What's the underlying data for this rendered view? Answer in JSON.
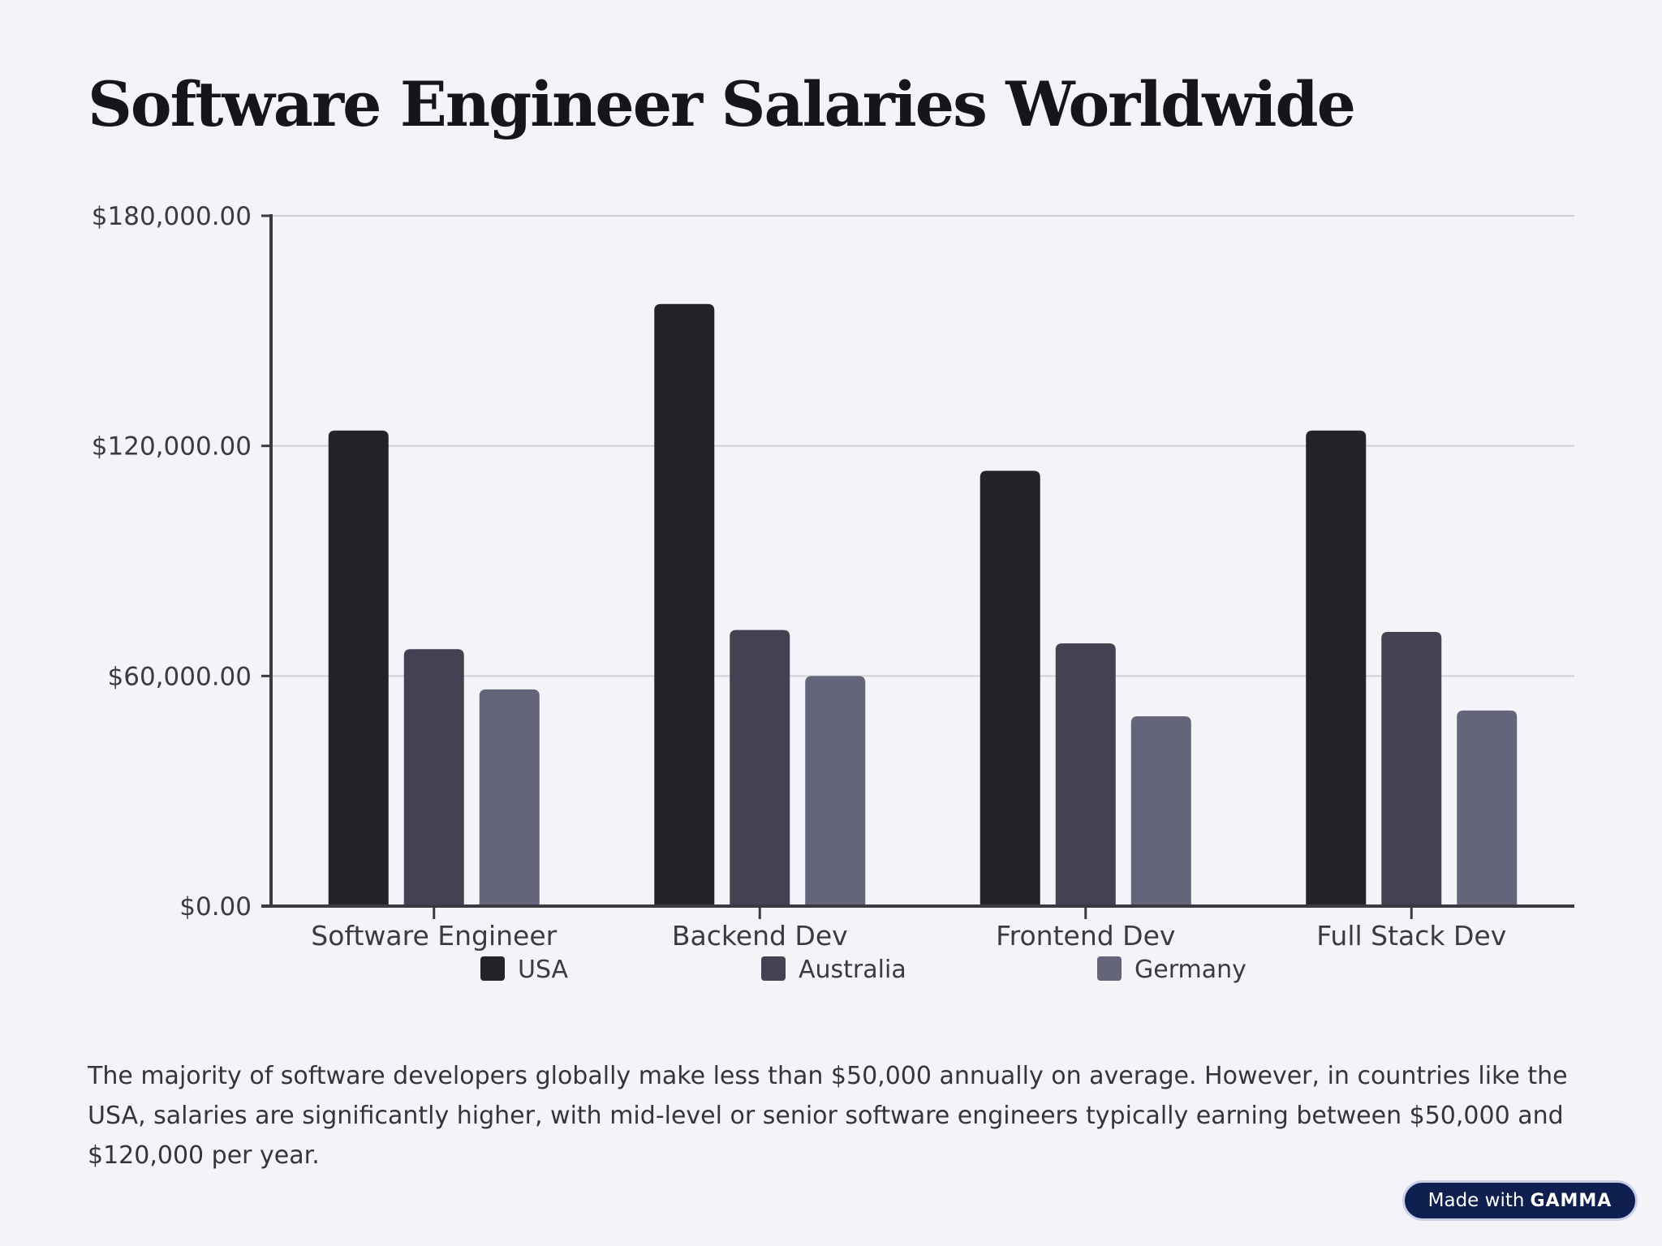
{
  "title": "Software Engineer Salaries Worldwide",
  "caption": "The majority of software developers globally make less than $50,000 annually on average. However, in countries like the USA, salaries are significantly higher, with mid-level or senior software engineers typically earning between $50,000 and $120,000 per year.",
  "badge": {
    "prefix": "Made with",
    "brand": "GAMMA"
  },
  "chart_data": {
    "type": "bar",
    "title": "Software Engineer Salaries Worldwide",
    "xlabel": "",
    "ylabel": "",
    "categories": [
      "Software Engineer",
      "Backend Dev",
      "Frontend Dev",
      "Full Stack Dev"
    ],
    "series": [
      {
        "name": "USA",
        "color": "#232329",
        "values": [
          124000,
          157000,
          113500,
          124000
        ]
      },
      {
        "name": "Australia",
        "color": "#434253",
        "values": [
          67000,
          72000,
          68500,
          71500
        ]
      },
      {
        "name": "Germany",
        "color": "#64647a",
        "values": [
          56500,
          60000,
          49500,
          51000
        ]
      }
    ],
    "ylim": [
      0,
      180000
    ],
    "yticks": [
      0,
      60000,
      120000,
      180000
    ],
    "ytick_labels": [
      "$0.00",
      "$60,000.00",
      "$120,000.00",
      "$180,000.00"
    ],
    "grid": true,
    "legend_position": "bottom"
  }
}
